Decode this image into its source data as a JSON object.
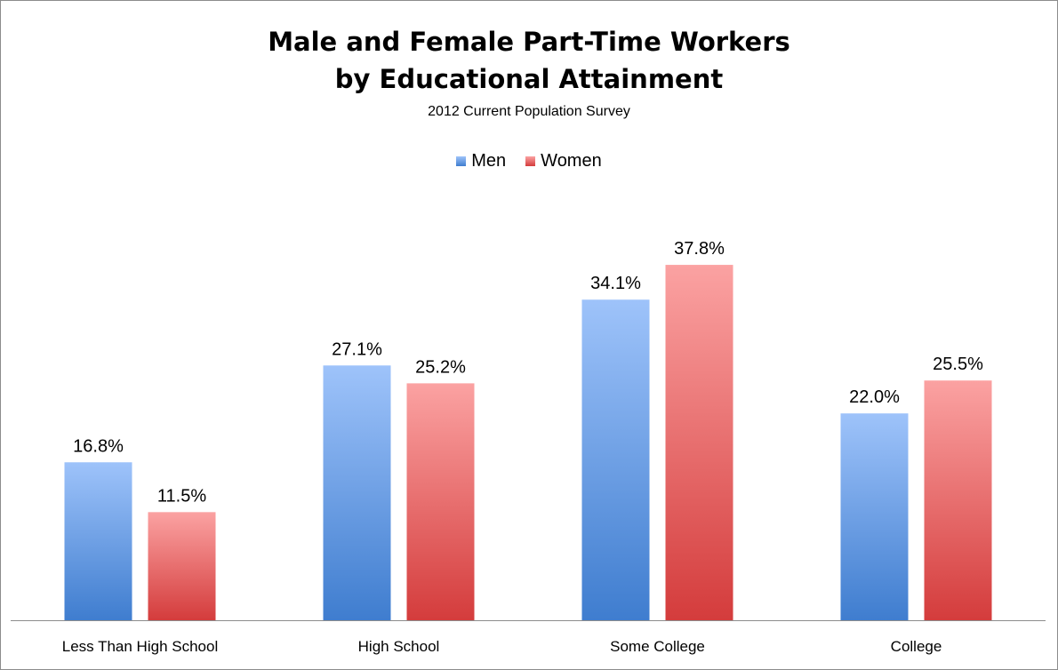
{
  "chart_data": {
    "type": "bar",
    "title_line1": "Male and Female Part-Time Workers",
    "title_line2": "by Educational Attainment",
    "subtitle": "2012  Current Population Survey",
    "categories": [
      "Less Than High School",
      "High School",
      "Some College",
      "College"
    ],
    "series": [
      {
        "name": "Men",
        "values": [
          16.8,
          27.1,
          34.1,
          22.0
        ],
        "labels": [
          "16.8%",
          "27.1%",
          "34.1%",
          "22.0%"
        ],
        "color_top": "#9ec3fa",
        "color_bottom": "#3f7dcf"
      },
      {
        "name": "Women",
        "values": [
          11.5,
          25.2,
          37.8,
          25.5
        ],
        "labels": [
          "11.5%",
          "25.2%",
          "37.8%",
          "25.5%"
        ],
        "color_top": "#fba2a2",
        "color_bottom": "#d43c3c"
      }
    ],
    "ylim": [
      0,
      40
    ],
    "grid": false,
    "legend_position": "top"
  }
}
